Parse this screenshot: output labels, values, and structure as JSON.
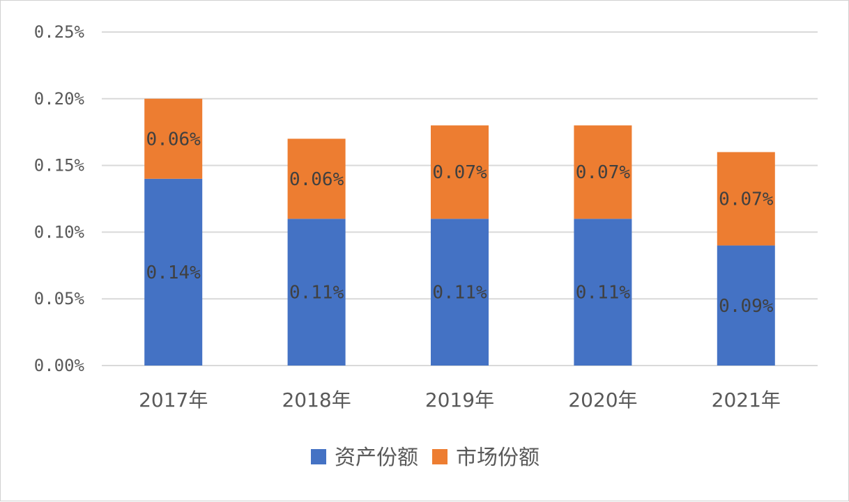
{
  "chart_data": {
    "type": "bar",
    "stacked": true,
    "categories": [
      "2017年",
      "2018年",
      "2019年",
      "2020年",
      "2021年"
    ],
    "series": [
      {
        "name": "资产份额",
        "values": [
          0.14,
          0.11,
          0.11,
          0.11,
          0.09
        ],
        "labels": [
          "0.14%",
          "0.11%",
          "0.11%",
          "0.11%",
          "0.09%"
        ],
        "color": "#4472C4"
      },
      {
        "name": "市场份额",
        "values": [
          0.06,
          0.06,
          0.07,
          0.07,
          0.07
        ],
        "labels": [
          "0.06%",
          "0.06%",
          "0.07%",
          "0.07%",
          "0.07%"
        ],
        "color": "#ED7D31"
      }
    ],
    "y_ticks": [
      "0.00%",
      "0.05%",
      "0.10%",
      "0.15%",
      "0.20%",
      "0.25%"
    ],
    "ylim": [
      0,
      0.25
    ],
    "grid": true,
    "legend": "bottom",
    "title": "",
    "xlabel": "",
    "ylabel": ""
  }
}
